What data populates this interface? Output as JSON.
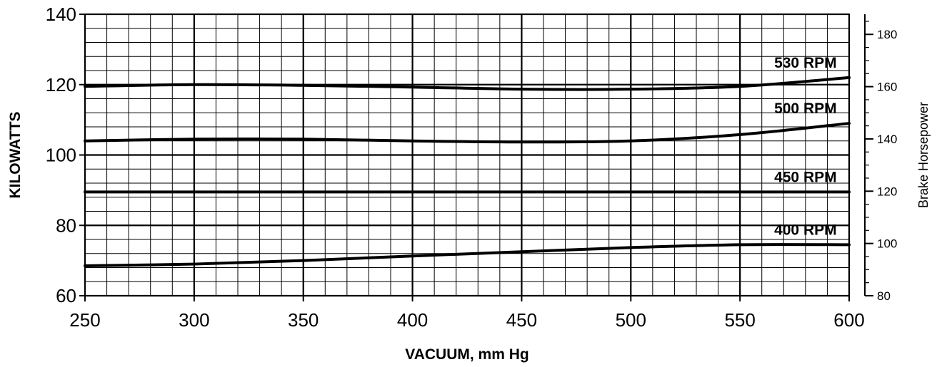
{
  "chart_data": {
    "type": "line",
    "xlabel": "VACUUM, mm Hg",
    "ylabel": "KILOWATTS",
    "y2label": "Brake Horsepower",
    "xlim": [
      250,
      600
    ],
    "ylim": [
      60,
      140
    ],
    "y2lim": [
      80,
      187.7
    ],
    "x_ticks": [
      250,
      300,
      350,
      400,
      450,
      500,
      550,
      600
    ],
    "y_ticks": [
      60,
      80,
      100,
      120,
      140
    ],
    "y2_ticks": [
      80,
      100,
      120,
      140,
      160,
      180
    ],
    "grid": true,
    "series": [
      {
        "name": "530 RPM",
        "x": [
          250,
          300,
          350,
          400,
          450,
          500,
          550,
          600
        ],
        "values": [
          119.5,
          120,
          119.8,
          119.3,
          118.7,
          118.7,
          119.5,
          122
        ]
      },
      {
        "name": "500 RPM",
        "x": [
          250,
          300,
          350,
          400,
          450,
          500,
          550,
          600
        ],
        "values": [
          104,
          104.5,
          104.5,
          104,
          103.7,
          104,
          105.8,
          109
        ]
      },
      {
        "name": "450 RPM",
        "x": [
          250,
          300,
          350,
          400,
          450,
          500,
          550,
          600
        ],
        "values": [
          89.5,
          89.5,
          89.5,
          89.5,
          89.5,
          89.5,
          89.5,
          89.5
        ]
      },
      {
        "name": "400 RPM",
        "x": [
          250,
          300,
          350,
          400,
          450,
          500,
          550,
          600
        ],
        "values": [
          68.5,
          69,
          70,
          71.3,
          72.5,
          73.7,
          74.5,
          74.5
        ]
      }
    ]
  }
}
